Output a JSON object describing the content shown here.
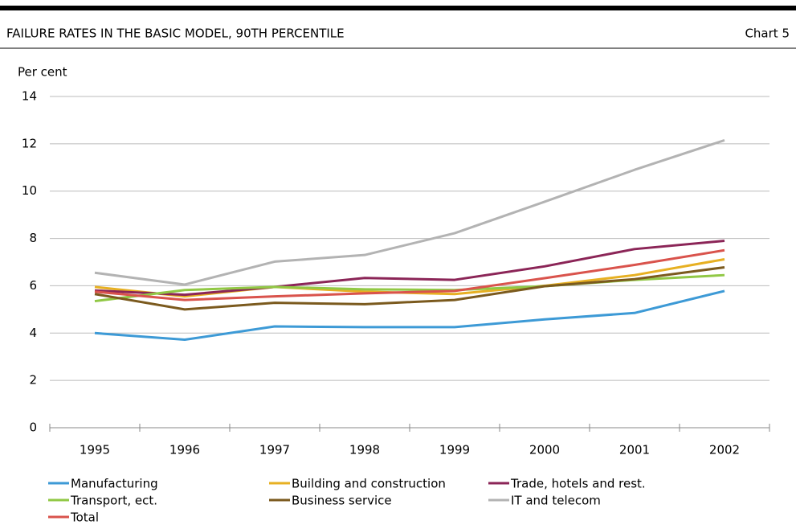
{
  "chart_data": {
    "type": "line",
    "title": "FAILURE RATES IN THE BASIC MODEL, 90TH PERCENTILE",
    "chart_label": "Chart 5",
    "y_axis_label": "Per cent",
    "categories": [
      "1995",
      "1996",
      "1997",
      "1998",
      "1999",
      "2000",
      "2001",
      "2002"
    ],
    "series": [
      {
        "name": "Manufacturing",
        "color": "#3d9ad6",
        "values": [
          4.0,
          3.72,
          4.28,
          4.25,
          4.25,
          4.58,
          4.85,
          5.78
        ]
      },
      {
        "name": "Building and construction",
        "color": "#e7b022",
        "values": [
          5.95,
          5.55,
          5.95,
          5.75,
          5.65,
          6.0,
          6.45,
          7.12
        ]
      },
      {
        "name": "Trade, hotels and rest.",
        "color": "#8b2557",
        "values": [
          5.8,
          5.62,
          5.95,
          6.33,
          6.25,
          6.82,
          7.55,
          7.9
        ]
      },
      {
        "name": "Transport, ect.",
        "color": "#91c845",
        "values": [
          5.35,
          5.82,
          5.95,
          5.85,
          5.82,
          5.98,
          6.25,
          6.45
        ]
      },
      {
        "name": "Business service",
        "color": "#7b5a1e",
        "values": [
          5.65,
          5.0,
          5.28,
          5.22,
          5.4,
          5.98,
          6.28,
          6.78
        ]
      },
      {
        "name": "IT and telecom",
        "color": "#b3b3b3",
        "values": [
          6.55,
          6.05,
          7.02,
          7.3,
          8.22,
          9.55,
          10.9,
          12.15
        ]
      },
      {
        "name": "Total",
        "color": "#d9534c",
        "values": [
          5.75,
          5.4,
          5.55,
          5.68,
          5.78,
          6.32,
          6.88,
          7.5
        ]
      }
    ],
    "ylim": [
      0,
      14
    ],
    "yticks": [
      0,
      2,
      4,
      6,
      8,
      10,
      12,
      14
    ],
    "grid": true
  }
}
